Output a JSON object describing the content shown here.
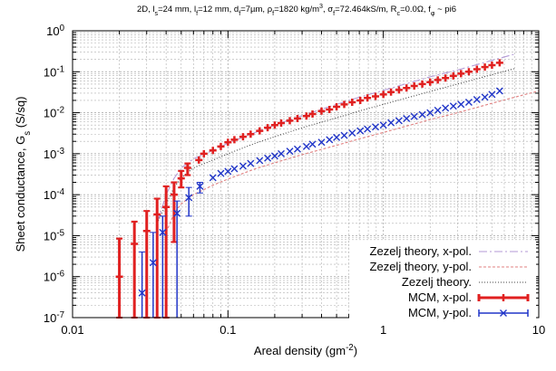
{
  "chart_data": {
    "type": "scatter",
    "title_parts": [
      {
        "t": "2D, l",
        "s": "n"
      },
      {
        "t": "s",
        "s": "sub"
      },
      {
        "t": "=24 mm, l",
        "s": "n"
      },
      {
        "t": "f",
        "s": "sub"
      },
      {
        "t": "=12 mm, d",
        "s": "n"
      },
      {
        "t": "f",
        "s": "sub"
      },
      {
        "t": "=7µm, ρ",
        "s": "n"
      },
      {
        "t": "f",
        "s": "sub"
      },
      {
        "t": "=1820 kg/m",
        "s": "n"
      },
      {
        "t": "3",
        "s": "sup"
      },
      {
        "t": ", σ",
        "s": "n"
      },
      {
        "t": "f",
        "s": "sub"
      },
      {
        "t": "=72.464kS/m, R",
        "s": "n"
      },
      {
        "t": "c",
        "s": "sub"
      },
      {
        "t": "=0.0Ω, f",
        "s": "n"
      },
      {
        "t": "φ",
        "s": "sub"
      },
      {
        "t": " ~ pi6",
        "s": "n"
      }
    ],
    "xlabel_parts": [
      {
        "t": "Areal density (gm",
        "s": "n"
      },
      {
        "t": "-2",
        "s": "sup"
      },
      {
        "t": ")",
        "s": "n"
      }
    ],
    "ylabel_parts": [
      {
        "t": "Sheet conductance, G",
        "s": "n"
      },
      {
        "t": "s",
        "s": "sub"
      },
      {
        "t": " (S/sq)",
        "s": "n"
      }
    ],
    "xscale": "log",
    "yscale": "log",
    "xlim": [
      0.01,
      10
    ],
    "ylim": [
      1e-07,
      1
    ],
    "x_ticks": [
      {
        "value": 0.01,
        "label": "0.01"
      },
      {
        "value": 0.1,
        "label": "0.1"
      },
      {
        "value": 1,
        "label": "1"
      },
      {
        "value": 10,
        "label": "10"
      }
    ],
    "y_ticks": [
      {
        "value": 1e-07,
        "base": "10",
        "exp": "-7"
      },
      {
        "value": 1e-06,
        "base": "10",
        "exp": "-6"
      },
      {
        "value": 1e-05,
        "base": "10",
        "exp": "-5"
      },
      {
        "value": 0.0001,
        "base": "10",
        "exp": "-4"
      },
      {
        "value": 0.001,
        "base": "10",
        "exp": "-3"
      },
      {
        "value": 0.01,
        "base": "10",
        "exp": "-2"
      },
      {
        "value": 0.1,
        "base": "10",
        "exp": "-1"
      },
      {
        "value": 1,
        "base": "10",
        "exp": "0"
      }
    ],
    "grid": true,
    "legend_position": "bottom-right",
    "lines": [
      {
        "name": "Zezelj theory, x-pol.",
        "color": "#b399d6",
        "dash": "9,3,2,3",
        "x": [
          0.035,
          0.04,
          0.045,
          0.05,
          0.06,
          0.08,
          0.1,
          0.15,
          0.2,
          0.3,
          0.5,
          0.7,
          1,
          2,
          3,
          5,
          7
        ],
        "y": [
          2e-05,
          0.0001,
          0.00025,
          0.00045,
          0.00075,
          0.0012,
          0.0018,
          0.0033,
          0.005,
          0.0085,
          0.016,
          0.024,
          0.035,
          0.075,
          0.11,
          0.19,
          0.27
        ]
      },
      {
        "name": "Zezelj theory, y-pol.",
        "color": "#e08080",
        "dash": "3,2",
        "x": [
          0.04,
          0.045,
          0.05,
          0.06,
          0.08,
          0.1,
          0.15,
          0.2,
          0.3,
          0.5,
          0.7,
          1,
          2,
          3,
          5,
          7,
          10
        ],
        "y": [
          1.2e-05,
          3.5e-05,
          6e-05,
          0.0001,
          0.00017,
          0.00024,
          0.00043,
          0.0006,
          0.00095,
          0.0016,
          0.0023,
          0.0033,
          0.0068,
          0.01,
          0.017,
          0.024,
          0.034
        ]
      },
      {
        "name": "Zezelj theory.",
        "color": "#444444",
        "dash": "1,2",
        "x": [
          0.035,
          0.04,
          0.045,
          0.05,
          0.06,
          0.08,
          0.1,
          0.15,
          0.2,
          0.3,
          0.5,
          0.7,
          1,
          2,
          3,
          5,
          7
        ],
        "y": [
          2e-05,
          6e-05,
          0.00015,
          0.00026,
          0.00045,
          0.0007,
          0.001,
          0.0018,
          0.0026,
          0.0043,
          0.0075,
          0.011,
          0.016,
          0.033,
          0.05,
          0.085,
          0.12
        ]
      }
    ],
    "series": [
      {
        "name": "MCM, x-pol.",
        "color": "#e02020",
        "marker": "plus",
        "err_width": 3,
        "x": [
          0.02,
          0.025,
          0.03,
          0.035,
          0.04,
          0.045,
          0.05,
          0.055,
          0.065,
          0.07,
          0.08,
          0.09,
          0.1,
          0.11,
          0.125,
          0.14,
          0.16,
          0.18,
          0.2,
          0.22,
          0.25,
          0.28,
          0.32,
          0.35,
          0.4,
          0.45,
          0.5,
          0.56,
          0.63,
          0.71,
          0.79,
          0.89,
          1.0,
          1.12,
          1.26,
          1.41,
          1.58,
          1.78,
          2.0,
          2.24,
          2.51,
          2.82,
          3.16,
          3.55,
          4.0,
          4.5,
          5.0,
          5.6
        ],
        "y": [
          1e-06,
          6.3e-06,
          1.3e-05,
          3.3e-05,
          5e-05,
          0.0001,
          0.00025,
          0.00045,
          0.0007,
          0.001,
          0.0012,
          0.0015,
          0.0019,
          0.0022,
          0.0026,
          0.003,
          0.0036,
          0.0043,
          0.005,
          0.0056,
          0.0064,
          0.0072,
          0.0083,
          0.0093,
          0.011,
          0.012,
          0.014,
          0.016,
          0.018,
          0.02,
          0.023,
          0.025,
          0.028,
          0.032,
          0.036,
          0.04,
          0.045,
          0.05,
          0.056,
          0.063,
          0.07,
          0.079,
          0.09,
          0.1,
          0.115,
          0.13,
          0.145,
          0.165
        ],
        "err_lo": [
          1e-07,
          1e-07,
          1e-07,
          1e-07,
          1e-07,
          7e-06,
          0.00015,
          0.0003,
          null,
          null,
          null,
          null,
          null,
          null,
          null,
          null,
          null,
          null,
          null,
          null,
          null,
          null,
          null,
          null,
          null,
          null,
          null,
          null,
          null,
          null,
          null,
          null,
          null,
          null,
          null,
          null,
          null,
          null,
          null,
          null,
          null,
          null,
          null,
          null,
          null,
          null,
          null,
          null
        ],
        "err_hi": [
          8.5e-06,
          2.2e-05,
          4e-05,
          8e-05,
          0.00016,
          0.0002,
          0.00038,
          0.00058,
          null,
          null,
          null,
          null,
          null,
          null,
          null,
          null,
          null,
          null,
          null,
          null,
          null,
          null,
          null,
          null,
          null,
          null,
          null,
          null,
          null,
          null,
          null,
          null,
          null,
          null,
          null,
          null,
          null,
          null,
          null,
          null,
          null,
          null,
          null,
          null,
          null,
          null,
          null,
          null
        ]
      },
      {
        "name": "MCM, y-pol.",
        "color": "#2035c8",
        "marker": "cross",
        "err_width": 1.5,
        "x": [
          0.028,
          0.033,
          0.038,
          0.047,
          0.056,
          0.066,
          0.08,
          0.09,
          0.1,
          0.11,
          0.125,
          0.14,
          0.16,
          0.18,
          0.2,
          0.22,
          0.25,
          0.28,
          0.32,
          0.35,
          0.4,
          0.45,
          0.5,
          0.56,
          0.63,
          0.71,
          0.79,
          0.89,
          1.0,
          1.12,
          1.26,
          1.41,
          1.58,
          1.78,
          2.0,
          2.24,
          2.51,
          2.82,
          3.16,
          3.55,
          4.0,
          4.5,
          5.0,
          5.6
        ],
        "y": [
          4e-07,
          2.2e-06,
          1.2e-05,
          3.5e-05,
          8.5e-05,
          0.00016,
          0.00026,
          0.00033,
          0.00037,
          0.00043,
          0.0005,
          0.00058,
          0.00068,
          0.00078,
          0.00088,
          0.001,
          0.00115,
          0.0013,
          0.0015,
          0.0017,
          0.0019,
          0.0022,
          0.0025,
          0.0028,
          0.0032,
          0.0036,
          0.004,
          0.0045,
          0.005,
          0.0057,
          0.0064,
          0.0072,
          0.0081,
          0.009,
          0.01,
          0.0115,
          0.013,
          0.0145,
          0.016,
          0.018,
          0.021,
          0.024,
          0.028,
          0.034
        ],
        "err_lo": [
          1e-07,
          1e-07,
          1e-07,
          1e-07,
          3e-05,
          0.00011,
          null,
          null,
          null,
          null,
          null,
          null,
          null,
          null,
          null,
          null,
          null,
          null,
          null,
          null,
          null,
          null,
          null,
          null,
          null,
          null,
          null,
          null,
          null,
          null,
          null,
          null,
          null,
          null,
          null,
          null,
          null,
          null,
          null,
          null,
          null,
          null,
          null,
          null
        ],
        "err_hi": [
          4e-06,
          1.2e-05,
          3e-05,
          7e-05,
          0.00015,
          0.0002,
          null,
          null,
          null,
          null,
          null,
          null,
          null,
          null,
          null,
          null,
          null,
          null,
          null,
          null,
          null,
          null,
          null,
          null,
          null,
          null,
          null,
          null,
          null,
          null,
          null,
          null,
          null,
          null,
          null,
          null,
          null,
          null,
          null,
          null,
          null,
          null,
          null,
          null
        ]
      }
    ]
  }
}
